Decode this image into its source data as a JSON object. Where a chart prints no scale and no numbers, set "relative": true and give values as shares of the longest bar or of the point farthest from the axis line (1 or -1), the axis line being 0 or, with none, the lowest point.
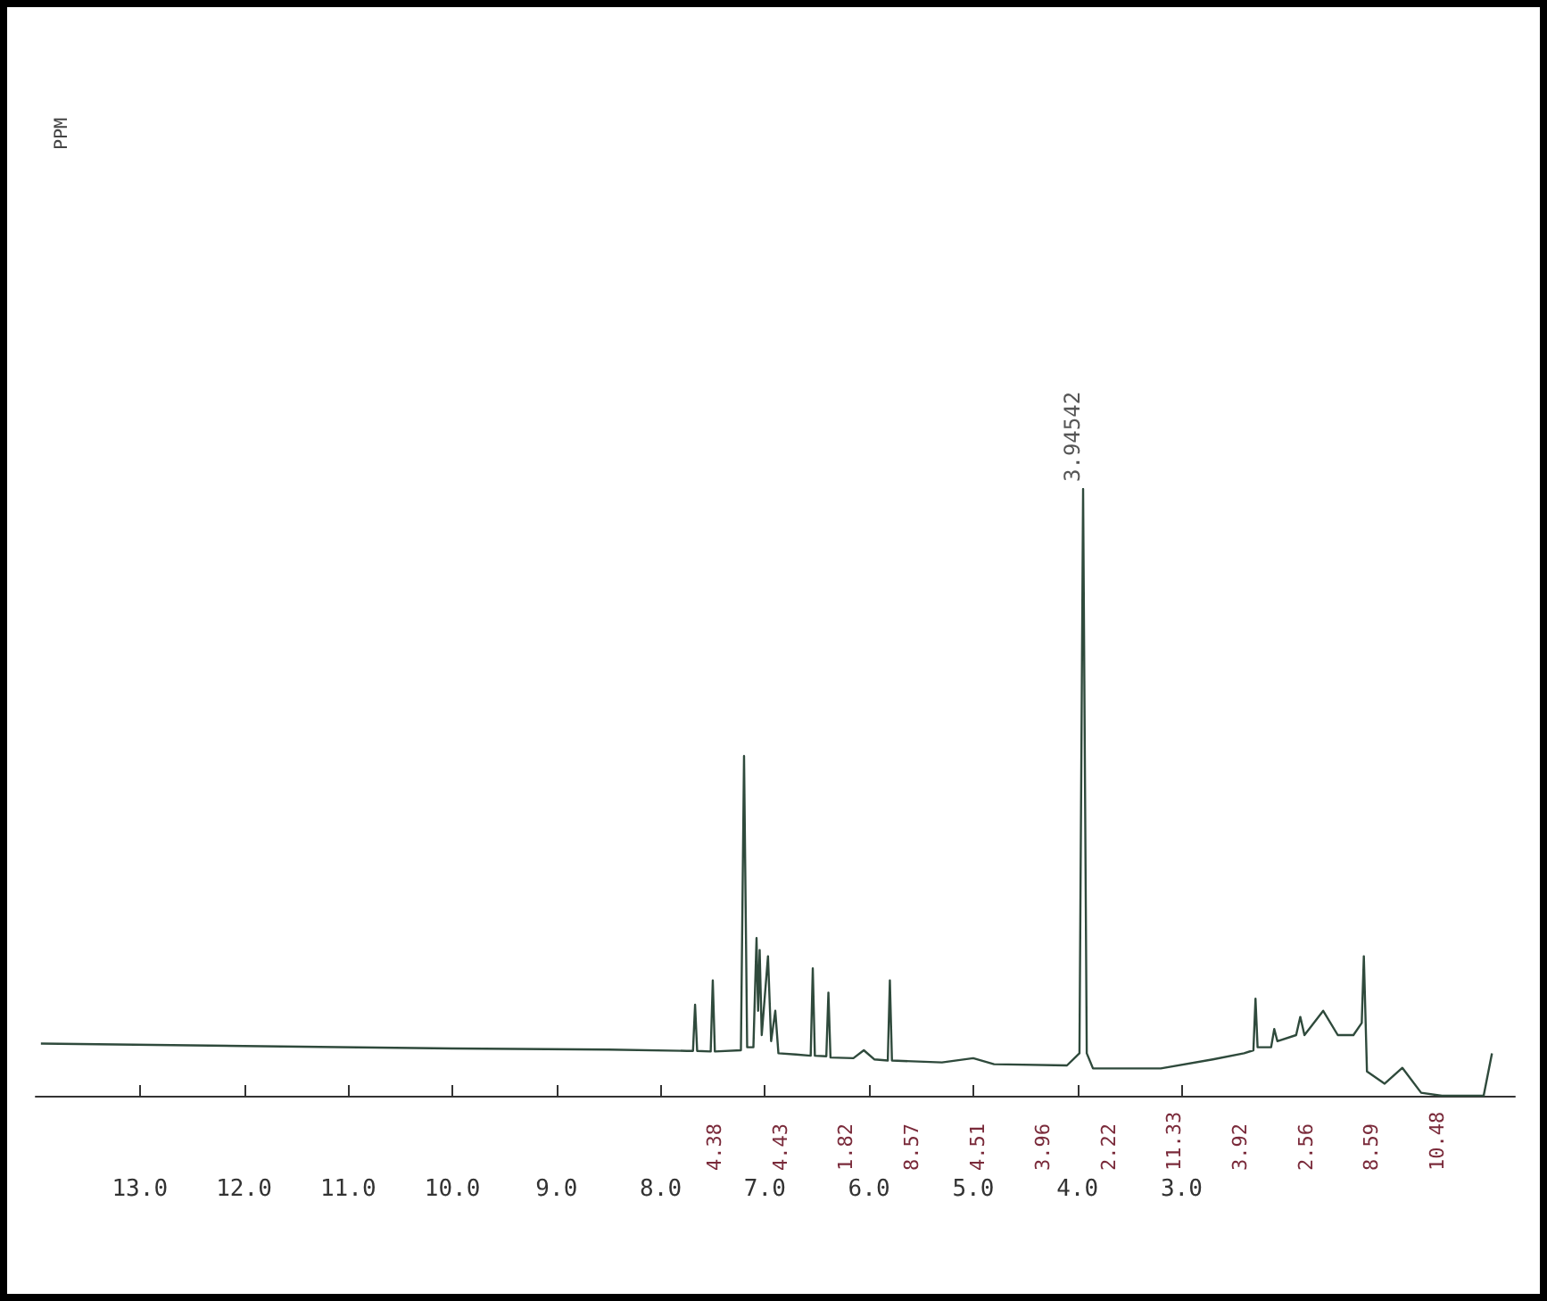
{
  "chart_data": {
    "type": "line",
    "relative": true,
    "color": "#2f4a3c",
    "grid": false,
    "marker": "none",
    "line_style": "solid",
    "xlim": [
      14,
      -0.2
    ],
    "xticks": [
      {
        "value": 13,
        "label": "13.0"
      },
      {
        "value": 12,
        "label": "12.0"
      },
      {
        "value": 11,
        "label": "11.0"
      },
      {
        "value": 10,
        "label": "10.0"
      },
      {
        "value": 9,
        "label": "9.0"
      },
      {
        "value": 8,
        "label": "8.0"
      },
      {
        "value": 7,
        "label": "7.0"
      },
      {
        "value": 6,
        "label": "6.0"
      },
      {
        "value": 5,
        "label": "5.0"
      },
      {
        "value": 4,
        "label": "4.0"
      },
      {
        "value": 3,
        "label": "3.0"
      }
    ],
    "x": [
      13.95,
      12.0,
      10.0,
      8.5,
      7.75,
      7.69,
      7.67,
      7.65,
      7.52,
      7.5,
      7.48,
      7.23,
      7.2,
      7.17,
      7.11,
      7.08,
      7.065,
      7.05,
      7.03,
      6.97,
      6.94,
      6.9,
      6.87,
      6.7,
      6.56,
      6.54,
      6.52,
      6.41,
      6.39,
      6.37,
      6.15,
      6.05,
      5.95,
      5.82,
      5.8,
      5.78,
      5.3,
      5.0,
      4.8,
      4.1,
      3.98,
      3.945,
      3.91,
      3.85,
      3.2,
      2.7,
      2.4,
      2.31,
      2.29,
      2.27,
      2.14,
      2.11,
      2.08,
      1.9,
      1.86,
      1.82,
      1.64,
      1.5,
      1.35,
      1.27,
      1.25,
      1.22,
      1.05,
      0.88,
      0.7,
      0.5,
      0.1,
      0.02
    ],
    "values": [
      0.086,
      0.082,
      0.078,
      0.076,
      0.074,
      0.074,
      0.15,
      0.074,
      0.073,
      0.19,
      0.073,
      0.075,
      0.56,
      0.08,
      0.08,
      0.26,
      0.14,
      0.24,
      0.1,
      0.23,
      0.09,
      0.14,
      0.07,
      0.068,
      0.066,
      0.21,
      0.066,
      0.065,
      0.17,
      0.063,
      0.062,
      0.075,
      0.06,
      0.058,
      0.19,
      0.058,
      0.055,
      0.062,
      0.052,
      0.05,
      0.07,
      1,
      0.07,
      0.045,
      0.045,
      0.06,
      0.07,
      0.075,
      0.16,
      0.08,
      0.08,
      0.11,
      0.09,
      0.1,
      0.13,
      0.1,
      0.14,
      0.1,
      0.1,
      0.12,
      0.23,
      0.04,
      0.02,
      0.046,
      0.005,
      0,
      0,
      0.07
    ],
    "annotations": [
      "PPM",
      {
        "text": "3.94542",
        "x": 3.945,
        "y": 1
      },
      "4.38",
      "4.43",
      "1.82",
      "8.57",
      "4.51",
      "3.96",
      "2.22",
      "11.33",
      "3.92",
      "2.56",
      "8.59",
      "10.48"
    ]
  }
}
